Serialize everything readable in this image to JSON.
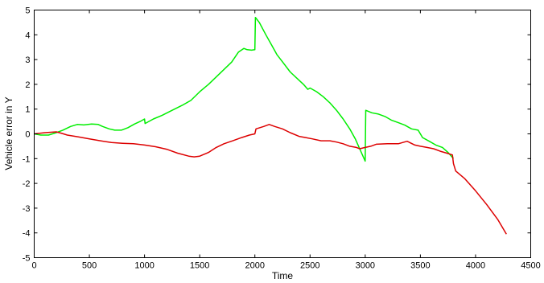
{
  "chart_data": {
    "type": "line",
    "title": "",
    "xlabel": "Time",
    "ylabel": "Vehicle error in Y",
    "xlim": [
      0,
      4500
    ],
    "ylim": [
      -5,
      5
    ],
    "xticks": [
      0,
      500,
      1000,
      1500,
      2000,
      2500,
      3000,
      3500,
      4000,
      4500
    ],
    "yticks": [
      -5,
      -4,
      -3,
      -2,
      -1,
      0,
      1,
      2,
      3,
      4,
      5
    ],
    "grid": false,
    "legend": "none",
    "series": [
      {
        "color": "#00ee00",
        "points": [
          [
            0,
            0.0
          ],
          [
            60,
            -0.05
          ],
          [
            130,
            -0.05
          ],
          [
            200,
            0.05
          ],
          [
            260,
            0.15
          ],
          [
            330,
            0.3
          ],
          [
            390,
            0.38
          ],
          [
            450,
            0.36
          ],
          [
            520,
            0.4
          ],
          [
            580,
            0.38
          ],
          [
            620,
            0.3
          ],
          [
            680,
            0.2
          ],
          [
            730,
            0.15
          ],
          [
            790,
            0.15
          ],
          [
            850,
            0.25
          ],
          [
            910,
            0.4
          ],
          [
            960,
            0.5
          ],
          [
            1000,
            0.6
          ],
          [
            1005,
            0.42
          ],
          [
            1080,
            0.6
          ],
          [
            1160,
            0.75
          ],
          [
            1250,
            0.95
          ],
          [
            1340,
            1.15
          ],
          [
            1420,
            1.35
          ],
          [
            1500,
            1.7
          ],
          [
            1580,
            2.0
          ],
          [
            1650,
            2.3
          ],
          [
            1720,
            2.6
          ],
          [
            1790,
            2.9
          ],
          [
            1850,
            3.3
          ],
          [
            1900,
            3.45
          ],
          [
            1930,
            3.4
          ],
          [
            1970,
            3.38
          ],
          [
            2000,
            3.4
          ],
          [
            2005,
            4.7
          ],
          [
            2040,
            4.5
          ],
          [
            2100,
            4.0
          ],
          [
            2150,
            3.6
          ],
          [
            2200,
            3.2
          ],
          [
            2260,
            2.85
          ],
          [
            2320,
            2.5
          ],
          [
            2380,
            2.25
          ],
          [
            2440,
            2.0
          ],
          [
            2480,
            1.8
          ],
          [
            2500,
            1.85
          ],
          [
            2560,
            1.7
          ],
          [
            2620,
            1.5
          ],
          [
            2680,
            1.25
          ],
          [
            2740,
            0.95
          ],
          [
            2800,
            0.6
          ],
          [
            2860,
            0.2
          ],
          [
            2910,
            -0.2
          ],
          [
            2960,
            -0.7
          ],
          [
            3000,
            -1.1
          ],
          [
            3005,
            0.95
          ],
          [
            3060,
            0.85
          ],
          [
            3120,
            0.8
          ],
          [
            3180,
            0.7
          ],
          [
            3240,
            0.55
          ],
          [
            3300,
            0.45
          ],
          [
            3360,
            0.35
          ],
          [
            3420,
            0.2
          ],
          [
            3480,
            0.15
          ],
          [
            3520,
            -0.15
          ],
          [
            3580,
            -0.3
          ],
          [
            3640,
            -0.45
          ],
          [
            3700,
            -0.55
          ],
          [
            3750,
            -0.75
          ],
          [
            3800,
            -1.0
          ]
        ]
      },
      {
        "color": "#dd0000",
        "points": [
          [
            0,
            0.0
          ],
          [
            100,
            0.05
          ],
          [
            200,
            0.08
          ],
          [
            250,
            0.02
          ],
          [
            300,
            -0.05
          ],
          [
            400,
            -0.12
          ],
          [
            500,
            -0.2
          ],
          [
            600,
            -0.28
          ],
          [
            700,
            -0.35
          ],
          [
            800,
            -0.38
          ],
          [
            900,
            -0.4
          ],
          [
            1000,
            -0.45
          ],
          [
            1100,
            -0.52
          ],
          [
            1200,
            -0.62
          ],
          [
            1300,
            -0.78
          ],
          [
            1400,
            -0.9
          ],
          [
            1450,
            -0.93
          ],
          [
            1500,
            -0.9
          ],
          [
            1580,
            -0.75
          ],
          [
            1650,
            -0.55
          ],
          [
            1720,
            -0.4
          ],
          [
            1800,
            -0.28
          ],
          [
            1880,
            -0.15
          ],
          [
            1950,
            -0.05
          ],
          [
            2000,
            0.0
          ],
          [
            2010,
            0.2
          ],
          [
            2080,
            0.3
          ],
          [
            2130,
            0.38
          ],
          [
            2180,
            0.3
          ],
          [
            2250,
            0.2
          ],
          [
            2320,
            0.05
          ],
          [
            2400,
            -0.1
          ],
          [
            2460,
            -0.15
          ],
          [
            2520,
            -0.2
          ],
          [
            2600,
            -0.28
          ],
          [
            2680,
            -0.28
          ],
          [
            2740,
            -0.33
          ],
          [
            2800,
            -0.4
          ],
          [
            2860,
            -0.5
          ],
          [
            2920,
            -0.55
          ],
          [
            2950,
            -0.6
          ],
          [
            3000,
            -0.55
          ],
          [
            3050,
            -0.5
          ],
          [
            3100,
            -0.42
          ],
          [
            3200,
            -0.4
          ],
          [
            3300,
            -0.4
          ],
          [
            3380,
            -0.3
          ],
          [
            3450,
            -0.45
          ],
          [
            3500,
            -0.5
          ],
          [
            3560,
            -0.55
          ],
          [
            3620,
            -0.6
          ],
          [
            3680,
            -0.7
          ],
          [
            3740,
            -0.78
          ],
          [
            3790,
            -0.85
          ],
          [
            3800,
            -1.2
          ],
          [
            3820,
            -1.5
          ],
          [
            3900,
            -1.8
          ],
          [
            4000,
            -2.3
          ],
          [
            4100,
            -2.85
          ],
          [
            4200,
            -3.45
          ],
          [
            4280,
            -4.05
          ]
        ]
      }
    ]
  }
}
